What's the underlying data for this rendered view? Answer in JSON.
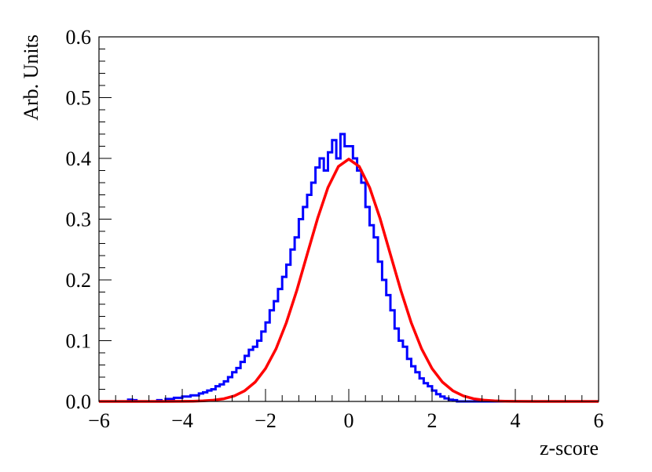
{
  "chart_data": {
    "type": "line",
    "title": "",
    "xlabel": "z-score",
    "ylabel": "Arb. Units",
    "xlim": [
      -6,
      6
    ],
    "ylim": [
      0,
      0.6
    ],
    "x_ticks": [
      -6,
      -4,
      -2,
      0,
      2,
      4,
      6
    ],
    "x_tick_labels": [
      "−6",
      "−4",
      "−2",
      "0",
      "2",
      "4",
      "6"
    ],
    "y_ticks": [
      0.0,
      0.1,
      0.2,
      0.3,
      0.4,
      0.5,
      0.6
    ],
    "y_tick_labels": [
      "0.0",
      "0.1",
      "0.2",
      "0.3",
      "0.4",
      "0.5",
      "0.6"
    ],
    "grid": false,
    "legend": "none",
    "series": [
      {
        "kind": "histogram",
        "color": "#0000ff",
        "bin_width": 0.1,
        "bin_centers": [
          -5.25,
          -5.15,
          -4.55,
          -4.35,
          -4.25,
          -4.15,
          -4.05,
          -3.95,
          -3.85,
          -3.75,
          -3.65,
          -3.55,
          -3.45,
          -3.35,
          -3.25,
          -3.15,
          -3.05,
          -2.95,
          -2.85,
          -2.75,
          -2.65,
          -2.55,
          -2.45,
          -2.35,
          -2.25,
          -2.15,
          -2.05,
          -1.95,
          -1.85,
          -1.75,
          -1.65,
          -1.55,
          -1.45,
          -1.35,
          -1.25,
          -1.15,
          -1.05,
          -0.95,
          -0.85,
          -0.75,
          -0.65,
          -0.55,
          -0.45,
          -0.35,
          -0.25,
          -0.15,
          -0.05,
          0.05,
          0.15,
          0.25,
          0.35,
          0.45,
          0.55,
          0.65,
          0.75,
          0.85,
          0.95,
          1.05,
          1.15,
          1.25,
          1.35,
          1.45,
          1.55,
          1.65,
          1.75,
          1.85,
          1.95,
          2.05,
          2.15,
          2.25,
          2.35,
          2.45,
          2.55
        ],
        "values": [
          0.003,
          0.002,
          0.002,
          0.004,
          0.004,
          0.006,
          0.006,
          0.008,
          0.008,
          0.01,
          0.01,
          0.013,
          0.015,
          0.018,
          0.02,
          0.025,
          0.028,
          0.033,
          0.04,
          0.048,
          0.055,
          0.065,
          0.075,
          0.085,
          0.09,
          0.1,
          0.115,
          0.13,
          0.15,
          0.165,
          0.185,
          0.205,
          0.225,
          0.25,
          0.27,
          0.3,
          0.32,
          0.34,
          0.36,
          0.385,
          0.4,
          0.38,
          0.41,
          0.43,
          0.4,
          0.44,
          0.42,
          0.42,
          0.4,
          0.38,
          0.36,
          0.32,
          0.29,
          0.27,
          0.23,
          0.2,
          0.175,
          0.15,
          0.12,
          0.1,
          0.09,
          0.07,
          0.058,
          0.048,
          0.038,
          0.03,
          0.025,
          0.018,
          0.012,
          0.008,
          0.005,
          0.003,
          0.002
        ]
      },
      {
        "kind": "curve",
        "color": "#ff0000",
        "function": "standard normal pdf",
        "x": [
          -6,
          -5.5,
          -5,
          -4.5,
          -4,
          -3.75,
          -3.5,
          -3.25,
          -3,
          -2.75,
          -2.5,
          -2.25,
          -2,
          -1.75,
          -1.5,
          -1.25,
          -1,
          -0.75,
          -0.5,
          -0.25,
          0,
          0.25,
          0.5,
          0.75,
          1,
          1.25,
          1.5,
          1.75,
          2,
          2.25,
          2.5,
          2.75,
          3,
          3.25,
          3.5,
          3.75,
          4,
          4.5,
          5,
          5.5,
          6
        ],
        "y": [
          0.0,
          0.0,
          0.0,
          2e-05,
          0.00013,
          0.00035,
          0.00087,
          0.002,
          0.0044,
          0.0091,
          0.0175,
          0.0317,
          0.054,
          0.0863,
          0.1295,
          0.1826,
          0.242,
          0.3011,
          0.3521,
          0.3867,
          0.3989,
          0.3867,
          0.3521,
          0.3011,
          0.242,
          0.1826,
          0.1295,
          0.0863,
          0.054,
          0.0317,
          0.0175,
          0.0091,
          0.0044,
          0.002,
          0.00087,
          0.00035,
          0.00013,
          2e-05,
          0.0,
          0.0,
          0.0
        ]
      }
    ]
  }
}
